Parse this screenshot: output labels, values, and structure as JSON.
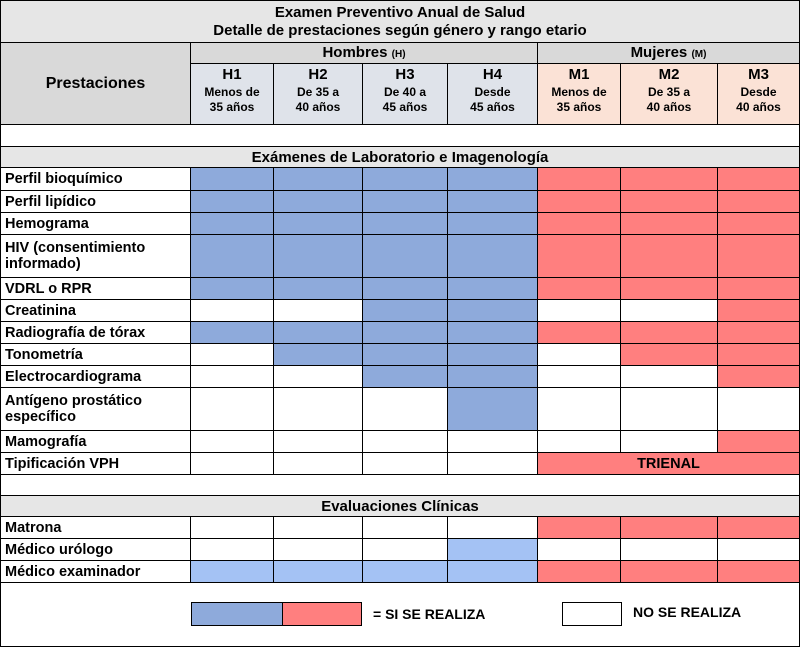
{
  "header": {
    "title": "Examen Preventivo Anual de Salud",
    "subtitle": "Detalle de prestaciones según género y rango etario",
    "prestaciones_label": "Prestaciones",
    "men_group": {
      "label": "Hombres",
      "tag": "(H)"
    },
    "women_group": {
      "label": "Mujeres",
      "tag": "(M)"
    },
    "columns": [
      {
        "code": "H1",
        "line1": "Menos de",
        "line2": "35 años"
      },
      {
        "code": "H2",
        "line1": "De 35 a",
        "line2": "40 años"
      },
      {
        "code": "H3",
        "line1": "De 40 a",
        "line2": "45 años"
      },
      {
        "code": "H4",
        "line1": "Desde",
        "line2": "45 años"
      },
      {
        "code": "M1",
        "line1": "Menos de",
        "line2": "35 años"
      },
      {
        "code": "M2",
        "line1": "De 35 a",
        "line2": "40 años"
      },
      {
        "code": "M3",
        "line1": "Desde",
        "line2": "40 años"
      }
    ]
  },
  "sections": {
    "lab": {
      "title": "Exámenes de Laboratorio e Imagenología",
      "rows": [
        {
          "label": "Perfil bioquímico",
          "cells": [
            "blue",
            "blue",
            "blue",
            "blue",
            "red",
            "red",
            "red"
          ]
        },
        {
          "label": "Perfil lipídico",
          "cells": [
            "blue",
            "blue",
            "blue",
            "blue",
            "red",
            "red",
            "red"
          ]
        },
        {
          "label": "Hemograma",
          "cells": [
            "blue",
            "blue",
            "blue",
            "blue",
            "red",
            "red",
            "red"
          ]
        },
        {
          "label": "HIV (consentimiento informado)",
          "cells": [
            "blue",
            "blue",
            "blue",
            "blue",
            "red",
            "red",
            "red"
          ]
        },
        {
          "label": "VDRL o RPR",
          "cells": [
            "blue",
            "blue",
            "blue",
            "blue",
            "red",
            "red",
            "red"
          ]
        },
        {
          "label": "Creatinina",
          "cells": [
            "white",
            "white",
            "blue",
            "blue",
            "white",
            "white",
            "red"
          ]
        },
        {
          "label": "Radiografía  de tórax",
          "cells": [
            "blue",
            "blue",
            "blue",
            "blue",
            "red",
            "red",
            "red"
          ]
        },
        {
          "label": "Tonometría",
          "cells": [
            "white",
            "blue",
            "blue",
            "blue",
            "white",
            "red",
            "red"
          ]
        },
        {
          "label": "Electrocardiograma",
          "cells": [
            "white",
            "white",
            "blue",
            "blue",
            "white",
            "white",
            "red"
          ]
        },
        {
          "label": "Antígeno prostático específico",
          "cells": [
            "white",
            "white",
            "white",
            "blue",
            "white",
            "white",
            "white"
          ]
        },
        {
          "label": "Mamografía",
          "cells": [
            "white",
            "white",
            "white",
            "white",
            "white",
            "white",
            "red"
          ]
        },
        {
          "label": "Tipificación VPH",
          "cells": [
            "white",
            "white",
            "white",
            "white",
            "red",
            "red",
            "red"
          ],
          "women_note": "TRIENAL"
        }
      ]
    },
    "clinical": {
      "title": "Evaluaciones Clínicas",
      "rows": [
        {
          "label": "Matrona",
          "cells": [
            "white",
            "white",
            "white",
            "white",
            "red",
            "red",
            "red"
          ]
        },
        {
          "label": "Médico urólogo",
          "cells": [
            "white",
            "white",
            "white",
            "blue",
            "white",
            "white",
            "white"
          ]
        },
        {
          "label": "Médico examinador",
          "cells": [
            "blue",
            "blue",
            "blue",
            "blue",
            "red",
            "red",
            "red"
          ]
        }
      ]
    }
  },
  "legend": {
    "yes_label": "=  SI SE REALIZA",
    "no_label": "NO SE REALIZA"
  },
  "colors": {
    "men": "#8eaadb",
    "men_light": "#a4c2f4",
    "women": "#ff7f7f",
    "men_header_bg": "#dfe3ea",
    "women_header_bg": "#fbe2d6",
    "band_bg": "#e6e6e6"
  }
}
